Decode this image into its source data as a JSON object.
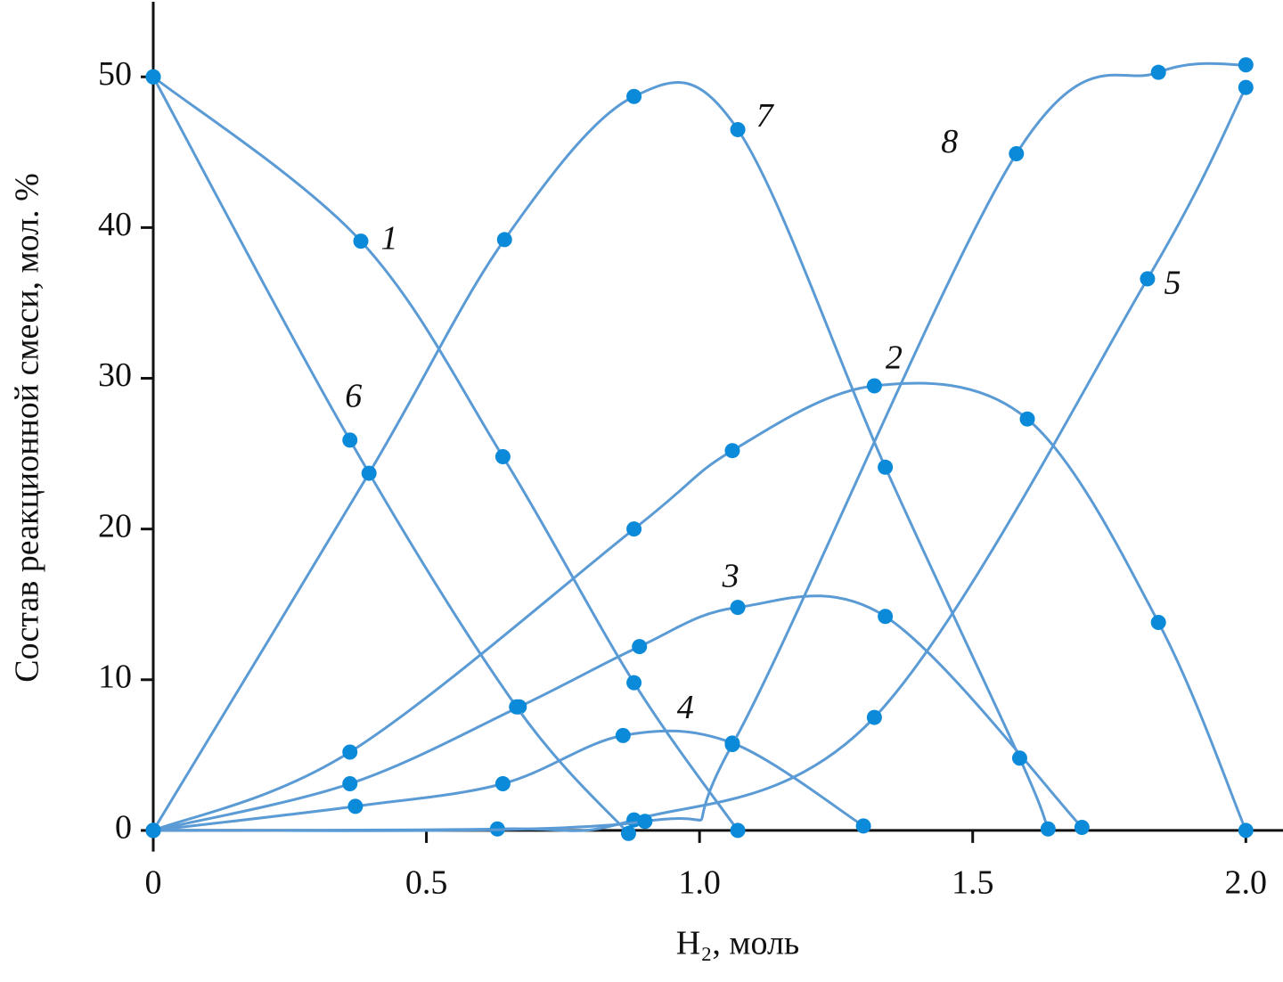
{
  "chart_data": {
    "type": "line",
    "x_label": "H₂, моль",
    "y_label": "Состав реакционной смеси, мол. %",
    "xlim": [
      0,
      2.068
    ],
    "ylim": [
      -1.4,
      55.1
    ],
    "xticks": [
      0,
      0.5,
      {
        "value": 1,
        "label": "1.0"
      },
      1.5,
      {
        "value": 2,
        "label": "2.0"
      }
    ],
    "yticks": [
      0,
      10,
      20,
      30,
      40,
      50
    ],
    "line_color": "#5b9bd5",
    "marker_color": "#0a8ad8",
    "series": [
      {
        "name": "1",
        "x": [
          0,
          0.38,
          0.64,
          0.88,
          1.07
        ],
        "values": [
          50,
          39.1,
          24.8,
          9.8,
          0
        ]
      },
      {
        "name": "2",
        "x": [
          0,
          0.36,
          0.88,
          1.06,
          1.32,
          1.6,
          1.84,
          2.0
        ],
        "values": [
          0,
          5.2,
          20.0,
          25.2,
          29.5,
          27.3,
          13.8,
          0
        ]
      },
      {
        "name": "3",
        "x": [
          0,
          0.36,
          0.67,
          0.89,
          1.07,
          1.34,
          1.7
        ],
        "values": [
          0,
          3.1,
          8.2,
          12.2,
          14.8,
          14.2,
          0.2
        ]
      },
      {
        "name": "4",
        "x": [
          0,
          0.37,
          0.64,
          0.86,
          1.06,
          1.3
        ],
        "values": [
          0,
          1.6,
          3.1,
          6.3,
          5.8,
          0.3
        ]
      },
      {
        "name": "5",
        "x": [
          0,
          0.63,
          0.88,
          1.32,
          1.82,
          2.0
        ],
        "values": [
          0,
          0.1,
          0.7,
          7.5,
          36.6,
          49.3
        ]
      },
      {
        "name": "6",
        "x": [
          0,
          0.36,
          0.665,
          0.87
        ],
        "values": [
          50,
          25.9,
          8.2,
          -0.2
        ]
      },
      {
        "name": "7",
        "x": [
          0,
          0.395,
          0.643,
          0.88,
          1.07,
          1.34,
          1.586,
          1.638
        ],
        "values": [
          0,
          23.7,
          39.2,
          48.7,
          46.5,
          24.1,
          4.8,
          0.1
        ]
      },
      {
        "name": "8",
        "x": [
          0,
          0.9,
          1.06,
          1.58,
          1.84,
          2.0
        ],
        "values": [
          0,
          0.6,
          5.7,
          44.9,
          50.3,
          50.8
        ]
      }
    ]
  }
}
